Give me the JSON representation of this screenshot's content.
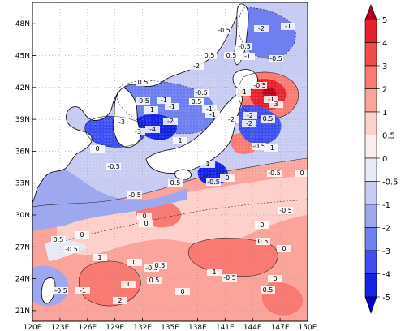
{
  "map": {
    "lon_ticks": [
      "120E",
      "123E",
      "126E",
      "129E",
      "132E",
      "135E",
      "138E",
      "141E",
      "144E",
      "147E",
      "150E"
    ],
    "lat_ticks": [
      "21N",
      "24N",
      "27N",
      "30N",
      "33N",
      "36N",
      "39N",
      "42N",
      "45N",
      "48N"
    ],
    "extent": {
      "lon": [
        120,
        150
      ],
      "lat": [
        20,
        50
      ]
    }
  },
  "colorbar": {
    "levels": [
      "5",
      "4",
      "3",
      "2",
      "1",
      "0.5",
      "0",
      "-0.5",
      "-1",
      "-2",
      "-3",
      "-4",
      "-5"
    ],
    "colors": [
      "#b8001c",
      "#e8202c",
      "#f34a48",
      "#f97a72",
      "#fba49c",
      "#fdd0cc",
      "#fdeeee",
      "#e8eaf8",
      "#c8ccf2",
      "#9ea8ee",
      "#6e7ff0",
      "#3d4ef2",
      "#1424e6",
      "#0000c8"
    ]
  },
  "contour_labels": [
    {
      "text": "-0.5"
    },
    {
      "text": "-2"
    },
    {
      "text": "-1"
    },
    {
      "text": "-0.5"
    },
    {
      "text": "-1"
    },
    {
      "text": "0.5"
    },
    {
      "text": "-0.5"
    },
    {
      "text": "0.5"
    },
    {
      "text": "-2"
    },
    {
      "text": "-0.5"
    },
    {
      "text": "-1"
    },
    {
      "text": "-0.5"
    },
    {
      "text": "-1"
    },
    {
      "text": "0.5"
    },
    {
      "text": "-0.5"
    },
    {
      "text": "-1"
    },
    {
      "text": "-0.5"
    },
    {
      "text": "-1"
    },
    {
      "text": "-3"
    },
    {
      "text": "-4"
    },
    {
      "text": "-3"
    },
    {
      "text": "-2"
    },
    {
      "text": "-1"
    },
    {
      "text": "-1"
    },
    {
      "text": "-2"
    },
    {
      "text": "-1"
    },
    {
      "text": "0.5"
    },
    {
      "text": "-2"
    },
    {
      "text": "-0.5"
    },
    {
      "text": "-1"
    },
    {
      "text": "0.5"
    },
    {
      "text": "3"
    },
    {
      "text": "-2"
    },
    {
      "text": "-0.5"
    },
    {
      "text": "1"
    },
    {
      "text": "0"
    },
    {
      "text": "-0.5"
    },
    {
      "text": "-1"
    },
    {
      "text": "0.5"
    },
    {
      "text": "0"
    },
    {
      "text": "1"
    },
    {
      "text": "0"
    },
    {
      "text": "-0.5"
    },
    {
      "text": "0"
    },
    {
      "text": "-0.5"
    },
    {
      "text": "0"
    },
    {
      "text": "1"
    },
    {
      "text": "0"
    },
    {
      "text": "-0.5"
    },
    {
      "text": "0"
    },
    {
      "text": "0.5"
    },
    {
      "text": "-0.5"
    },
    {
      "text": "0.5"
    },
    {
      "text": "1"
    },
    {
      "text": "0"
    },
    {
      "text": "0.5"
    },
    {
      "text": "0"
    },
    {
      "text": "2"
    },
    {
      "text": "0.5"
    },
    {
      "text": "-0.5"
    },
    {
      "text": "1"
    },
    {
      "text": "0"
    },
    {
      "text": "-0.5"
    },
    {
      "text": "0"
    },
    {
      "text": "-0.5"
    },
    {
      "text": "0.5"
    }
  ]
}
